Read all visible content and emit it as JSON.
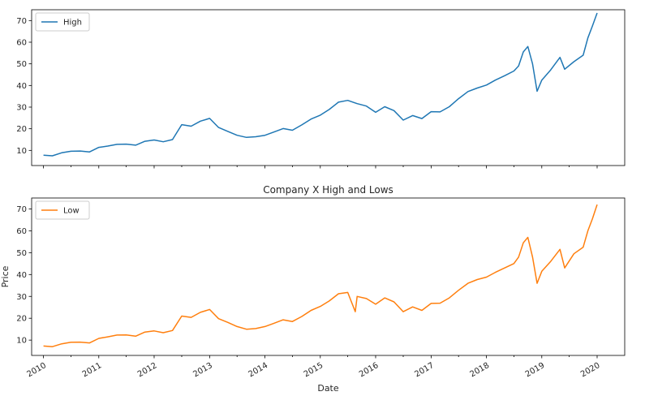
{
  "figure": {
    "title": "Company X High and Lows",
    "xlabel": "Date",
    "ylabel": "Price"
  },
  "chart_data": [
    {
      "type": "line",
      "title": "",
      "xlabel": "",
      "ylabel": "",
      "xlim": [
        "2009-10-15",
        "2020-07-01"
      ],
      "ylim": [
        3,
        75
      ],
      "yticks": [
        10,
        20,
        30,
        40,
        50,
        60,
        70
      ],
      "xticks": [
        "2010",
        "2011",
        "2012",
        "2013",
        "2014",
        "2015",
        "2016",
        "2017",
        "2018",
        "2019",
        "2020"
      ],
      "show_x_tick_labels": false,
      "grid": false,
      "legend": "upper-left",
      "series": [
        {
          "name": "High",
          "color": "#1f77b4",
          "x": [
            "2010-01-01",
            "2010-03-01",
            "2010-05-01",
            "2010-07-01",
            "2010-09-01",
            "2010-11-01",
            "2011-01-01",
            "2011-03-01",
            "2011-05-01",
            "2011-07-01",
            "2011-09-01",
            "2011-11-01",
            "2012-01-01",
            "2012-03-01",
            "2012-05-01",
            "2012-07-01",
            "2012-09-01",
            "2012-11-01",
            "2013-01-01",
            "2013-03-01",
            "2013-05-01",
            "2013-07-01",
            "2013-09-01",
            "2013-11-01",
            "2014-01-01",
            "2014-03-01",
            "2014-05-01",
            "2014-07-01",
            "2014-09-01",
            "2014-11-01",
            "2015-01-01",
            "2015-03-01",
            "2015-05-01",
            "2015-07-01",
            "2015-09-01",
            "2015-11-01",
            "2016-01-01",
            "2016-03-01",
            "2016-05-01",
            "2016-07-01",
            "2016-09-01",
            "2016-11-01",
            "2017-01-01",
            "2017-03-01",
            "2017-05-01",
            "2017-07-01",
            "2017-09-01",
            "2017-11-01",
            "2018-01-01",
            "2018-03-01",
            "2018-05-01",
            "2018-07-01",
            "2018-08-01",
            "2018-09-01",
            "2018-10-01",
            "2018-11-01",
            "2018-12-01",
            "2019-01-01",
            "2019-03-01",
            "2019-05-01",
            "2019-06-01",
            "2019-08-01",
            "2019-10-01",
            "2019-11-01",
            "2019-12-01",
            "2020-01-01"
          ],
          "values": [
            7.8,
            7.5,
            8.9,
            9.6,
            9.7,
            9.3,
            11.4,
            12.0,
            12.8,
            12.9,
            12.4,
            14.2,
            14.8,
            14.0,
            15.0,
            21.9,
            21.2,
            23.5,
            24.8,
            20.6,
            18.8,
            17.0,
            16.0,
            16.3,
            17.0,
            18.5,
            20.1,
            19.3,
            21.8,
            24.5,
            26.3,
            28.9,
            32.3,
            33.1,
            31.6,
            30.5,
            27.6,
            30.2,
            28.4,
            24.0,
            26.1,
            24.7,
            27.9,
            27.8,
            30.2,
            33.9,
            37.2,
            38.8,
            40.2,
            42.5,
            44.5,
            46.7,
            49.0,
            55.5,
            58.0,
            50.0,
            37.3,
            42.5,
            47.2,
            53.0,
            47.5,
            51.0,
            54.0,
            62.0,
            67.5,
            73.5
          ]
        }
      ]
    },
    {
      "type": "line",
      "title": "Company X High and Lows",
      "xlabel": "Date",
      "ylabel": "Price",
      "xlim": [
        "2009-10-15",
        "2020-07-01"
      ],
      "ylim": [
        3,
        75
      ],
      "yticks": [
        10,
        20,
        30,
        40,
        50,
        60,
        70
      ],
      "xticks": [
        "2010",
        "2011",
        "2012",
        "2013",
        "2014",
        "2015",
        "2016",
        "2017",
        "2018",
        "2019",
        "2020"
      ],
      "show_x_tick_labels": true,
      "grid": false,
      "legend": "upper-left",
      "series": [
        {
          "name": "Low",
          "color": "#ff7f0e",
          "x": [
            "2010-01-01",
            "2010-03-01",
            "2010-05-01",
            "2010-07-01",
            "2010-09-01",
            "2010-11-01",
            "2011-01-01",
            "2011-03-01",
            "2011-05-01",
            "2011-07-01",
            "2011-09-01",
            "2011-11-01",
            "2012-01-01",
            "2012-03-01",
            "2012-05-01",
            "2012-07-01",
            "2012-09-01",
            "2012-11-01",
            "2013-01-01",
            "2013-03-01",
            "2013-05-01",
            "2013-07-01",
            "2013-09-01",
            "2013-11-01",
            "2014-01-01",
            "2014-03-01",
            "2014-05-01",
            "2014-07-01",
            "2014-09-01",
            "2014-11-01",
            "2015-01-01",
            "2015-03-01",
            "2015-05-01",
            "2015-07-01",
            "2015-08-20",
            "2015-09-01",
            "2015-11-01",
            "2016-01-01",
            "2016-03-01",
            "2016-05-01",
            "2016-07-01",
            "2016-09-01",
            "2016-11-01",
            "2017-01-01",
            "2017-03-01",
            "2017-05-01",
            "2017-07-01",
            "2017-09-01",
            "2017-11-01",
            "2018-01-01",
            "2018-03-01",
            "2018-05-01",
            "2018-07-01",
            "2018-08-01",
            "2018-09-01",
            "2018-10-01",
            "2018-11-01",
            "2018-12-01",
            "2019-01-01",
            "2019-03-01",
            "2019-05-01",
            "2019-06-01",
            "2019-08-01",
            "2019-10-01",
            "2019-11-01",
            "2019-12-01",
            "2020-01-01"
          ],
          "values": [
            7.3,
            7.0,
            8.3,
            9.0,
            9.1,
            8.7,
            10.8,
            11.5,
            12.3,
            12.4,
            11.8,
            13.7,
            14.2,
            13.4,
            14.4,
            21.0,
            20.4,
            22.7,
            24.0,
            19.8,
            18.1,
            16.2,
            15.0,
            15.3,
            16.2,
            17.7,
            19.3,
            18.5,
            20.8,
            23.6,
            25.4,
            27.9,
            31.2,
            31.8,
            23.0,
            30.0,
            29.0,
            26.4,
            29.3,
            27.5,
            23.0,
            25.2,
            23.6,
            26.8,
            26.9,
            29.3,
            32.8,
            36.0,
            37.7,
            38.8,
            41.0,
            43.0,
            45.0,
            48.0,
            54.5,
            57.0,
            48.0,
            36.0,
            41.5,
            46.0,
            51.5,
            43.0,
            49.5,
            52.5,
            60.0,
            65.5,
            72.0
          ]
        }
      ]
    }
  ]
}
